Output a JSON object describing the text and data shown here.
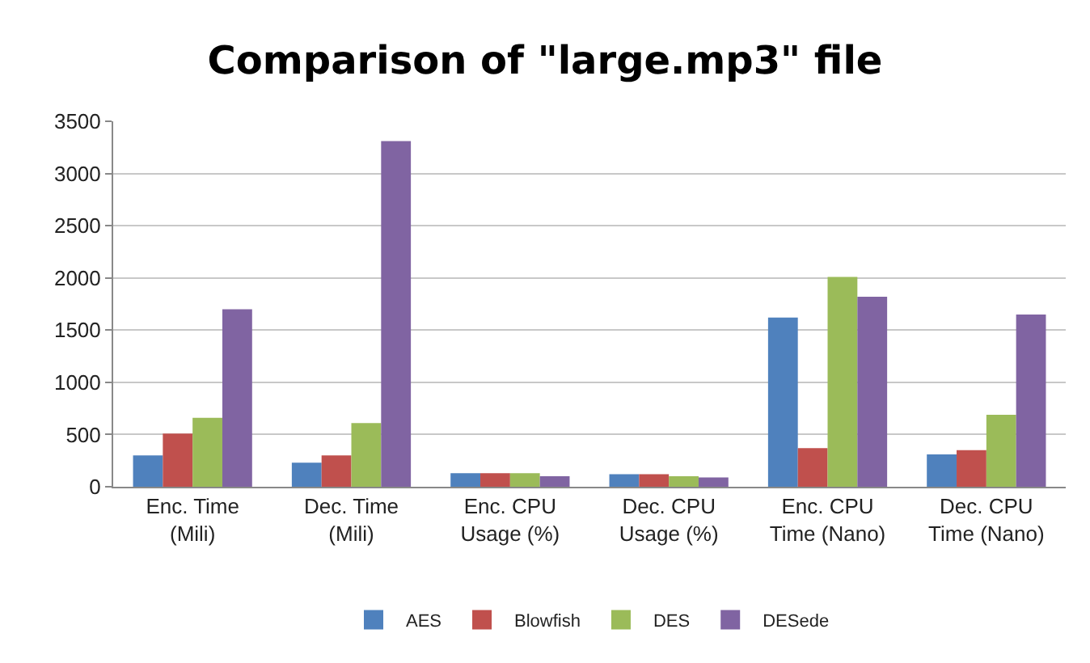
{
  "chart_data": {
    "type": "bar",
    "title": "Comparison of \"large.mp3\" file",
    "categories": [
      "Enc. Time (Mili)",
      "Dec. Time (Mili)",
      "Enc. CPU Usage (%)",
      "Dec. CPU Usage (%)",
      "Enc. CPU Time (Nano)",
      "Dec. CPU Time (Nano)"
    ],
    "series": [
      {
        "name": "AES",
        "color": "#4f81bd",
        "values": [
          300,
          230,
          130,
          120,
          1620,
          310
        ]
      },
      {
        "name": "Blowfish",
        "color": "#c0504d",
        "values": [
          510,
          300,
          130,
          120,
          370,
          350
        ]
      },
      {
        "name": "DES",
        "color": "#9bbb59",
        "values": [
          660,
          610,
          130,
          100,
          2010,
          690
        ]
      },
      {
        "name": "DESede",
        "color": "#8064a2",
        "values": [
          1700,
          3310,
          100,
          90,
          1820,
          1650
        ]
      }
    ],
    "ylim": [
      0,
      3500
    ],
    "yticks": [
      0,
      500,
      1000,
      1500,
      2000,
      2500,
      3000,
      3500
    ],
    "grid": "y",
    "legend": "bottom"
  }
}
